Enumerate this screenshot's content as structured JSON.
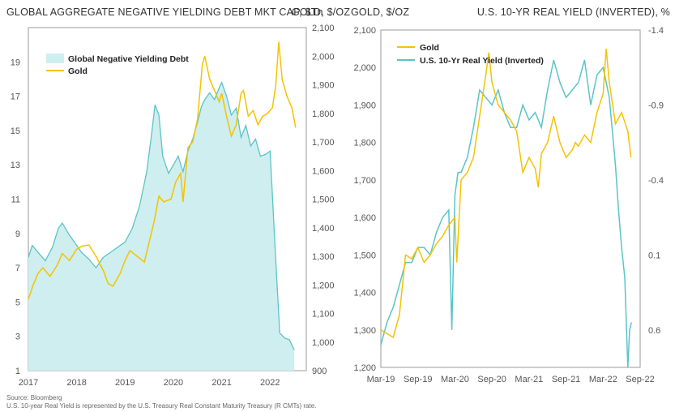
{
  "chart_data": [
    {
      "type": "area",
      "title": "GLOBAL AGGREGATE NEGATIVE YIELDING DEBT MKT CAP, $Tn",
      "ylabel_right": "GOLD, $/OZ",
      "x_ticks": [
        "2017",
        "2018",
        "2019",
        "2020",
        "2021",
        "2022"
      ],
      "x_range": [
        2017.0,
        2022.75
      ],
      "ylim_left": [
        1,
        21
      ],
      "yticks_left": [
        1,
        3,
        5,
        7,
        9,
        11,
        13,
        15,
        17,
        19
      ],
      "ylim_right": [
        900,
        2100
      ],
      "yticks_right": [
        900,
        1000,
        1100,
        1200,
        1300,
        1400,
        1500,
        1600,
        1700,
        1800,
        1900,
        2000,
        2100
      ],
      "grid": false,
      "legend_position": "top-left",
      "series": [
        {
          "name": "Global Negative Yielding Debt",
          "axis": "left",
          "color": "#5bc4c8",
          "fill": "#cfeeef",
          "x": [
            2017.0,
            2017.08,
            2017.2,
            2017.35,
            2017.5,
            2017.62,
            2017.7,
            2017.85,
            2018.0,
            2018.1,
            2018.25,
            2018.4,
            2018.55,
            2018.7,
            2018.85,
            2019.0,
            2019.15,
            2019.3,
            2019.45,
            2019.55,
            2019.62,
            2019.7,
            2019.78,
            2019.9,
            2020.0,
            2020.1,
            2020.2,
            2020.3,
            2020.4,
            2020.5,
            2020.58,
            2020.65,
            2020.75,
            2020.85,
            2020.95,
            2021.0,
            2021.1,
            2021.2,
            2021.3,
            2021.4,
            2021.5,
            2021.6,
            2021.7,
            2021.8,
            2021.9,
            2022.0,
            2022.05,
            2022.1,
            2022.15,
            2022.2,
            2022.3,
            2022.4,
            2022.5
          ],
          "values": [
            7.6,
            8.3,
            7.9,
            7.4,
            8.2,
            9.3,
            9.6,
            8.9,
            8.3,
            7.9,
            7.5,
            7.0,
            7.6,
            7.9,
            8.2,
            8.5,
            9.3,
            10.6,
            12.6,
            14.8,
            16.5,
            15.9,
            13.5,
            12.5,
            13.0,
            13.5,
            12.6,
            13.8,
            14.5,
            15.5,
            16.4,
            16.8,
            17.2,
            16.8,
            17.5,
            17.8,
            17.0,
            15.9,
            16.3,
            14.6,
            15.3,
            14.1,
            14.5,
            13.5,
            13.6,
            13.8,
            11.2,
            8.4,
            5.8,
            3.2,
            2.9,
            2.8,
            2.2
          ]
        },
        {
          "name": "Gold",
          "axis": "right",
          "color": "#f4c300",
          "x": [
            2017.0,
            2017.1,
            2017.2,
            2017.3,
            2017.45,
            2017.6,
            2017.7,
            2017.85,
            2018.0,
            2018.1,
            2018.25,
            2018.4,
            2018.55,
            2018.65,
            2018.75,
            2018.9,
            2019.0,
            2019.1,
            2019.25,
            2019.4,
            2019.5,
            2019.6,
            2019.7,
            2019.8,
            2019.95,
            2020.05,
            2020.15,
            2020.2,
            2020.3,
            2020.4,
            2020.5,
            2020.6,
            2020.65,
            2020.75,
            2020.85,
            2020.95,
            2021.0,
            2021.1,
            2021.2,
            2021.3,
            2021.4,
            2021.45,
            2021.55,
            2021.65,
            2021.75,
            2021.85,
            2021.95,
            2022.05,
            2022.12,
            2022.18,
            2022.25,
            2022.35,
            2022.45,
            2022.53
          ],
          "values": [
            1150,
            1200,
            1240,
            1260,
            1230,
            1270,
            1310,
            1285,
            1325,
            1335,
            1340,
            1300,
            1250,
            1205,
            1195,
            1240,
            1285,
            1320,
            1300,
            1280,
            1350,
            1420,
            1510,
            1490,
            1500,
            1560,
            1590,
            1490,
            1680,
            1700,
            1780,
            1970,
            2000,
            1920,
            1880,
            1840,
            1870,
            1790,
            1720,
            1760,
            1870,
            1880,
            1790,
            1810,
            1760,
            1790,
            1800,
            1820,
            1900,
            2050,
            1920,
            1860,
            1820,
            1750
          ]
        }
      ]
    },
    {
      "type": "line",
      "title_left": "GOLD, $/OZ",
      "title_right": "U.S. 10-YR REAL YIELD (INVERTED), %",
      "x_ticks": [
        "Mar-19",
        "Sep-19",
        "Mar-20",
        "Sep-20",
        "Mar-21",
        "Sep-21",
        "Mar-22",
        "Sep-22"
      ],
      "x_range": [
        0,
        42
      ],
      "ylim_left": [
        1200,
        2100
      ],
      "yticks_left": [
        1200,
        1300,
        1400,
        1500,
        1600,
        1700,
        1800,
        1900,
        2000,
        2100
      ],
      "ylim_right": [
        0.85,
        -1.4
      ],
      "yticks_right": [
        -1.4,
        -0.9,
        -0.4,
        0.1,
        0.6
      ],
      "grid": false,
      "legend_position": "top-left",
      "series": [
        {
          "name": "Gold",
          "axis": "left",
          "color": "#f4c300",
          "x": [
            0,
            1,
            2,
            3,
            3.5,
            4,
            5,
            6,
            7,
            8,
            9,
            10,
            11,
            12,
            12.3,
            13,
            14,
            15,
            16,
            17,
            17.5,
            18,
            19,
            20,
            21,
            22,
            23,
            24,
            25,
            25.5,
            26,
            27,
            28,
            29,
            30,
            31,
            31.5,
            32,
            33,
            34,
            35,
            36,
            36.5,
            37,
            38,
            39,
            40,
            40.5
          ],
          "values": [
            1300,
            1290,
            1280,
            1340,
            1420,
            1500,
            1490,
            1520,
            1480,
            1500,
            1530,
            1550,
            1580,
            1600,
            1480,
            1700,
            1720,
            1760,
            1870,
            1980,
            2040,
            1960,
            1900,
            1880,
            1860,
            1830,
            1720,
            1760,
            1730,
            1680,
            1770,
            1800,
            1870,
            1800,
            1760,
            1780,
            1800,
            1790,
            1820,
            1800,
            1880,
            1930,
            2050,
            1960,
            1850,
            1880,
            1830,
            1760
          ]
        },
        {
          "name": "U.S. 10-Yr Real Yield (Inverted)",
          "axis": "right",
          "color": "#5bc4c8",
          "x": [
            0,
            1,
            2,
            3,
            4,
            5,
            6,
            7,
            8,
            9,
            10,
            11,
            11.5,
            12,
            12.5,
            13,
            14,
            15,
            16,
            17,
            18,
            19,
            20,
            21,
            22,
            23,
            24,
            25,
            26,
            27,
            28,
            29,
            30,
            31,
            32,
            33,
            34,
            35,
            36,
            37,
            38,
            38.5,
            39,
            39.5,
            40,
            40.3,
            40.6
          ],
          "values": [
            0.7,
            0.55,
            0.45,
            0.3,
            0.15,
            0.15,
            0.05,
            0.05,
            0.1,
            -0.05,
            -0.15,
            -0.2,
            0.6,
            -0.3,
            -0.45,
            -0.45,
            -0.55,
            -0.75,
            -1.0,
            -0.95,
            -0.9,
            -1.0,
            -0.85,
            -0.75,
            -0.75,
            -0.9,
            -0.8,
            -0.85,
            -0.75,
            -1.0,
            -1.2,
            -1.05,
            -0.95,
            -1.0,
            -1.05,
            -1.2,
            -0.9,
            -1.1,
            -1.15,
            -0.95,
            -0.5,
            -0.2,
            0.05,
            0.25,
            0.85,
            0.6,
            0.55
          ]
        }
      ]
    }
  ],
  "source": "Source: Bloomberg",
  "note": "U.S. 10-year Real Yield is represented by the U.S. Treasury Real Constant Maturity Treasury (R CMTs) rate."
}
